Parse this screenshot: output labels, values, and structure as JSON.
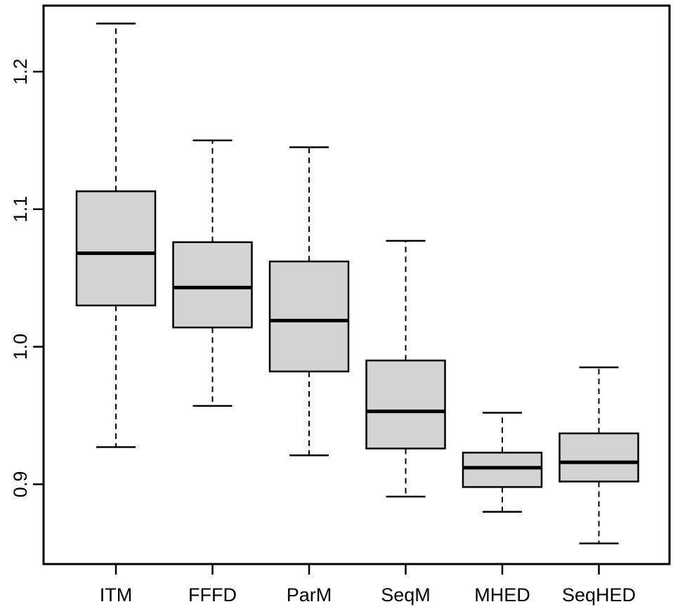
{
  "figure": {
    "background_color": "#ffffff"
  },
  "chart_data": {
    "type": "boxplot",
    "title": "",
    "xlabel": "",
    "ylabel": "",
    "categories": [
      "ITM",
      "FFFD",
      "ParM",
      "SeqM",
      "MHED",
      "SeqHED"
    ],
    "series": [
      {
        "name": "ITM",
        "whisker_low": 0.927,
        "q1": 1.03,
        "median": 1.068,
        "q3": 1.113,
        "whisker_high": 1.235
      },
      {
        "name": "FFFD",
        "whisker_low": 0.957,
        "q1": 1.014,
        "median": 1.043,
        "q3": 1.076,
        "whisker_high": 1.15
      },
      {
        "name": "ParM",
        "whisker_low": 0.921,
        "q1": 0.982,
        "median": 1.019,
        "q3": 1.062,
        "whisker_high": 1.145
      },
      {
        "name": "SeqM",
        "whisker_low": 0.891,
        "q1": 0.926,
        "median": 0.953,
        "q3": 0.99,
        "whisker_high": 1.077
      },
      {
        "name": "MHED",
        "whisker_low": 0.88,
        "q1": 0.898,
        "median": 0.912,
        "q3": 0.923,
        "whisker_high": 0.952
      },
      {
        "name": "SeqHED",
        "whisker_low": 0.857,
        "q1": 0.902,
        "median": 0.916,
        "q3": 0.937,
        "whisker_high": 0.985
      }
    ],
    "outliers": [],
    "ylim": [
      0.842,
      1.248
    ],
    "yticks": [
      "0.9",
      "1.0",
      "1.1",
      "1.2"
    ],
    "grid": false,
    "legend": null,
    "colors": {
      "box_fill": "#d3d3d3",
      "box_border": "#000000",
      "median": "#000000",
      "whisker": "#000000",
      "frame": "#000000",
      "tick": "#000000",
      "text": "#000000",
      "background": "#ffffff"
    }
  }
}
